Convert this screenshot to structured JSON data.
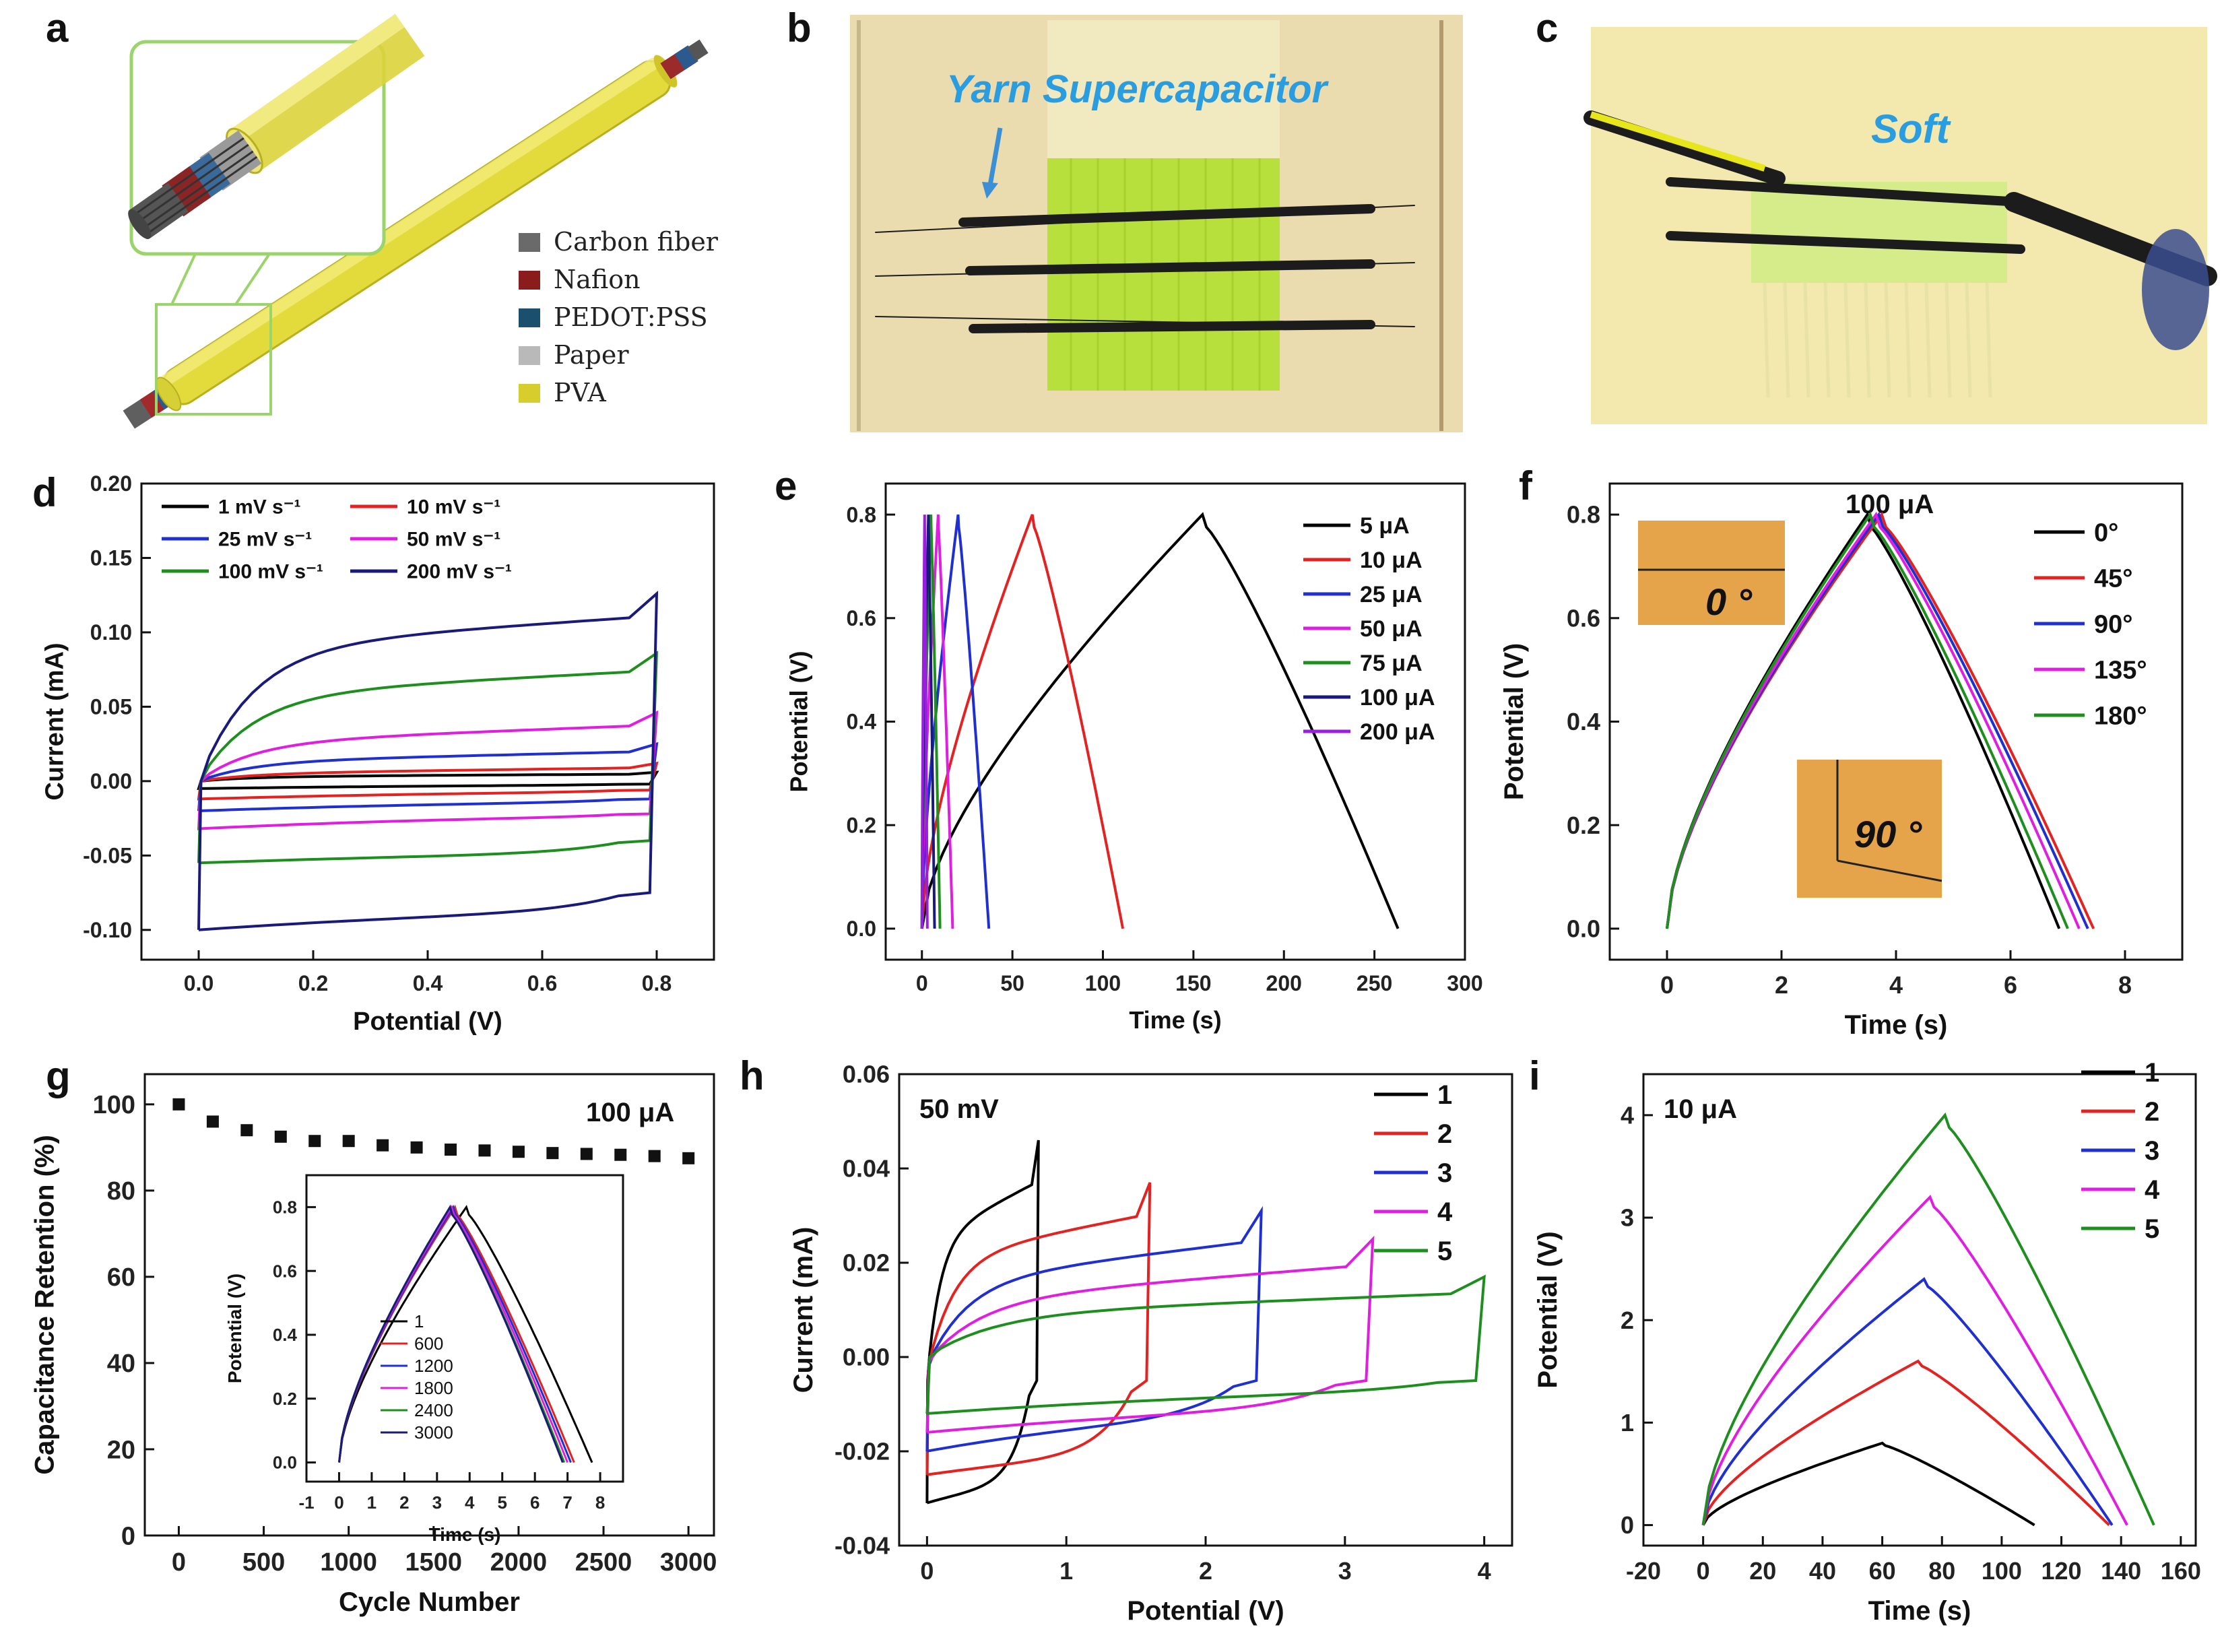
{
  "panel_letters": [
    "a",
    "b",
    "c",
    "d",
    "e",
    "f",
    "g",
    "h",
    "i"
  ],
  "panel_a": {
    "legend": [
      {
        "label": "Carbon fiber",
        "color": "#6a6a6a"
      },
      {
        "label": "Nafion",
        "color": "#8b1c1c"
      },
      {
        "label": "PEDOT:PSS",
        "color": "#1a4f6e"
      },
      {
        "label": "Paper",
        "color": "#b9b9b9"
      },
      {
        "label": "PVA",
        "color": "#d7ce2e"
      }
    ]
  },
  "panel_b": {
    "caption": "Yarn Supercapacitor"
  },
  "panel_c": {
    "caption": "Soft"
  },
  "chart_data": [
    {
      "id": "d",
      "type": "line",
      "xlabel": "Potential (V)",
      "ylabel": "Current (mA)",
      "xlim": [
        -0.1,
        0.9
      ],
      "ylim": [
        -0.12,
        0.2
      ],
      "xticks": [
        0.0,
        0.2,
        0.4,
        0.6,
        0.8
      ],
      "yticks": [
        -0.1,
        -0.05,
        0.0,
        0.05,
        0.1,
        0.15,
        0.2
      ],
      "xdec": 1,
      "ydec": 2,
      "series": [
        {
          "name": "1 mV s⁻¹",
          "color": "#000000",
          "vmax": 0.8,
          "top_start": 0.0,
          "top_mid": 0.003,
          "top_end": 0.006,
          "bot_end": -0.002,
          "bot_mid": -0.003,
          "bot_start": -0.005
        },
        {
          "name": "10 mV s⁻¹",
          "color": "#e32222",
          "vmax": 0.8,
          "top_start": 0.0,
          "top_mid": 0.005,
          "top_end": 0.012,
          "bot_end": -0.006,
          "bot_mid": -0.008,
          "bot_start": -0.012
        },
        {
          "name": "25 mV s⁻¹",
          "color": "#1f2fd0",
          "vmax": 0.8,
          "top_start": 0.0,
          "top_mid": 0.013,
          "top_end": 0.025,
          "bot_end": -0.012,
          "bot_mid": -0.015,
          "bot_start": -0.02
        },
        {
          "name": "50 mV s⁻¹",
          "color": "#e01ee0",
          "vmax": 0.8,
          "top_start": 0.0,
          "top_mid": 0.026,
          "top_end": 0.046,
          "bot_end": -0.022,
          "bot_mid": -0.025,
          "bot_start": -0.032
        },
        {
          "name": "100 mV s⁻¹",
          "color": "#1e8f1e",
          "vmax": 0.8,
          "top_start": 0.0,
          "top_mid": 0.058,
          "top_end": 0.086,
          "bot_end": -0.04,
          "bot_mid": -0.05,
          "bot_start": -0.055
        },
        {
          "name": "200 mV s⁻¹",
          "color": "#1a1a7a",
          "vmax": 0.8,
          "top_start": 0.0,
          "top_mid": 0.09,
          "top_end": 0.126,
          "bot_end": -0.075,
          "bot_mid": -0.09,
          "bot_start": -0.1
        }
      ]
    },
    {
      "id": "e",
      "type": "line",
      "xlabel": "Time (s)",
      "ylabel": "Potential (V)",
      "xlim": [
        -20,
        300
      ],
      "ylim": [
        -0.06,
        0.86
      ],
      "xticks": [
        0,
        50,
        100,
        150,
        200,
        250,
        300
      ],
      "yticks": [
        0.0,
        0.2,
        0.4,
        0.6,
        0.8
      ],
      "xdec": 0,
      "ydec": 1,
      "series": [
        {
          "name": "5 μA",
          "color": "#000000",
          "peak_time": 155,
          "end_time": 263,
          "vmax": 0.8
        },
        {
          "name": "10 μA",
          "color": "#e32222",
          "peak_time": 61,
          "end_time": 111,
          "vmax": 0.8
        },
        {
          "name": "25 μA",
          "color": "#1f2fd0",
          "peak_time": 20,
          "end_time": 37,
          "vmax": 0.8
        },
        {
          "name": "50 μA",
          "color": "#e01ee0",
          "peak_time": 9,
          "end_time": 17,
          "vmax": 0.8
        },
        {
          "name": "75 μA",
          "color": "#1e8f1e",
          "peak_time": 5,
          "end_time": 10,
          "vmax": 0.8
        },
        {
          "name": "100 μA",
          "color": "#1a1a7a",
          "peak_time": 3.6,
          "end_time": 7,
          "vmax": 0.8
        },
        {
          "name": "200 μA",
          "color": "#9b1ee0",
          "peak_time": 1.5,
          "end_time": 3,
          "vmax": 0.8
        }
      ]
    },
    {
      "id": "f",
      "type": "line",
      "title": "100 μA",
      "xlabel": "Time (s)",
      "ylabel": "Potential (V)",
      "xlim": [
        -1,
        9
      ],
      "ylim": [
        -0.06,
        0.86
      ],
      "xticks": [
        0,
        2,
        4,
        6,
        8
      ],
      "yticks": [
        0.0,
        0.2,
        0.4,
        0.6,
        0.8
      ],
      "xdec": 0,
      "ydec": 1,
      "insets": [
        "0 °",
        "90 °"
      ],
      "series": [
        {
          "name": "0°",
          "color": "#000000",
          "peak_time": 3.5,
          "end_time": 6.85,
          "vmax": 0.8
        },
        {
          "name": "45°",
          "color": "#e32222",
          "peak_time": 3.75,
          "end_time": 7.45,
          "vmax": 0.8
        },
        {
          "name": "90°",
          "color": "#1f2fd0",
          "peak_time": 3.7,
          "end_time": 7.35,
          "vmax": 0.8
        },
        {
          "name": "135°",
          "color": "#e01ee0",
          "peak_time": 3.65,
          "end_time": 7.2,
          "vmax": 0.8
        },
        {
          "name": "180°",
          "color": "#1e8f1e",
          "peak_time": 3.55,
          "end_time": 7.0,
          "vmax": 0.8
        }
      ]
    },
    {
      "id": "g",
      "type": "scatter",
      "title": "100 μA",
      "xlabel": "Cycle Number",
      "ylabel": "Capacitance Retention (%)",
      "xlim": [
        -200,
        3150
      ],
      "ylim": [
        0,
        107
      ],
      "xticks": [
        0,
        500,
        1000,
        1500,
        2000,
        2500,
        3000
      ],
      "yticks": [
        0,
        20,
        40,
        60,
        80,
        100
      ],
      "xdec": 0,
      "ydec": 0,
      "x": [
        0,
        200,
        400,
        600,
        800,
        1000,
        1200,
        1400,
        1600,
        1800,
        2000,
        2200,
        2400,
        2600,
        2800,
        3000
      ],
      "y": [
        100,
        96,
        94,
        92.5,
        91.5,
        91.5,
        90.5,
        90,
        89.5,
        89.3,
        89,
        88.7,
        88.5,
        88.3,
        88,
        87.5
      ],
      "inset": {
        "xlabel": "Time (s)",
        "ylabel": "Potential (V)",
        "xlim": [
          -1,
          8.7
        ],
        "ylim": [
          -0.06,
          0.9
        ],
        "xticks": [
          -1,
          0,
          1,
          2,
          3,
          4,
          5,
          6,
          7,
          8
        ],
        "yticks": [
          0.0,
          0.2,
          0.4,
          0.6,
          0.8
        ],
        "xdec": 0,
        "ydec": 1,
        "series": [
          {
            "name": "1",
            "color": "#000000",
            "peak_time": 3.9,
            "end_time": 7.75,
            "vmax": 0.8
          },
          {
            "name": "600",
            "color": "#e32222",
            "peak_time": 3.55,
            "end_time": 7.2,
            "vmax": 0.8
          },
          {
            "name": "1200",
            "color": "#1f2fd0",
            "peak_time": 3.5,
            "end_time": 7.1,
            "vmax": 0.8
          },
          {
            "name": "1800",
            "color": "#e01ee0",
            "peak_time": 3.45,
            "end_time": 7.0,
            "vmax": 0.8
          },
          {
            "name": "2400",
            "color": "#1e8f1e",
            "peak_time": 3.4,
            "end_time": 6.9,
            "vmax": 0.8
          },
          {
            "name": "3000",
            "color": "#1a1a7a",
            "peak_time": 3.4,
            "end_time": 6.85,
            "vmax": 0.8
          }
        ]
      }
    },
    {
      "id": "h",
      "type": "line",
      "title": "50 mV",
      "xlabel": "Potential (V)",
      "ylabel": "Current (mA)",
      "xlim": [
        -0.2,
        4.2
      ],
      "ylim": [
        -0.04,
        0.06
      ],
      "xticks": [
        0,
        1,
        2,
        3,
        4
      ],
      "yticks": [
        -0.04,
        -0.02,
        0.0,
        0.02,
        0.04,
        0.06
      ],
      "xdec": 0,
      "ydec": 2,
      "series": [
        {
          "name": "1",
          "color": "#000000",
          "vmax": 0.8,
          "top_start": -0.005,
          "top_mid": 0.025,
          "top_end": 0.046,
          "bot_end": -0.005,
          "bot_mid": -0.028,
          "bot_start": -0.031
        },
        {
          "name": "2",
          "color": "#e32222",
          "vmax": 1.6,
          "top_start": -0.003,
          "top_mid": 0.021,
          "top_end": 0.037,
          "bot_end": -0.005,
          "bot_mid": -0.022,
          "bot_start": -0.025
        },
        {
          "name": "3",
          "color": "#1f2fd0",
          "vmax": 2.4,
          "top_start": -0.002,
          "top_mid": 0.016,
          "top_end": 0.031,
          "bot_end": -0.005,
          "bot_mid": -0.014,
          "bot_start": -0.02
        },
        {
          "name": "4",
          "color": "#e01ee0",
          "vmax": 3.2,
          "top_start": -0.001,
          "top_mid": 0.012,
          "top_end": 0.025,
          "bot_end": -0.005,
          "bot_mid": -0.012,
          "bot_start": -0.016
        },
        {
          "name": "5",
          "color": "#1e8f1e",
          "vmax": 4.0,
          "top_start": 0.0,
          "top_mid": 0.009,
          "top_end": 0.017,
          "bot_end": -0.005,
          "bot_mid": -0.008,
          "bot_start": -0.012
        }
      ]
    },
    {
      "id": "i",
      "type": "line",
      "title": "10 μA",
      "xlabel": "Time (s)",
      "ylabel": "Potential (V)",
      "xlim": [
        -20,
        165
      ],
      "ylim": [
        -0.2,
        4.4
      ],
      "xticks": [
        -20,
        0,
        20,
        40,
        60,
        80,
        100,
        120,
        140,
        160
      ],
      "yticks": [
        0,
        1,
        2,
        3,
        4
      ],
      "xdec": 0,
      "ydec": 0,
      "series": [
        {
          "name": "1",
          "color": "#000000",
          "peak_time": 60,
          "end_time": 111,
          "vmax": 0.8
        },
        {
          "name": "2",
          "color": "#e32222",
          "peak_time": 72,
          "end_time": 136,
          "vmax": 1.6
        },
        {
          "name": "3",
          "color": "#1f2fd0",
          "peak_time": 74,
          "end_time": 137,
          "vmax": 2.4
        },
        {
          "name": "4",
          "color": "#e01ee0",
          "peak_time": 76,
          "end_time": 142,
          "vmax": 3.2
        },
        {
          "name": "5",
          "color": "#1e8f1e",
          "peak_time": 81,
          "end_time": 151,
          "vmax": 4.0
        }
      ]
    }
  ]
}
